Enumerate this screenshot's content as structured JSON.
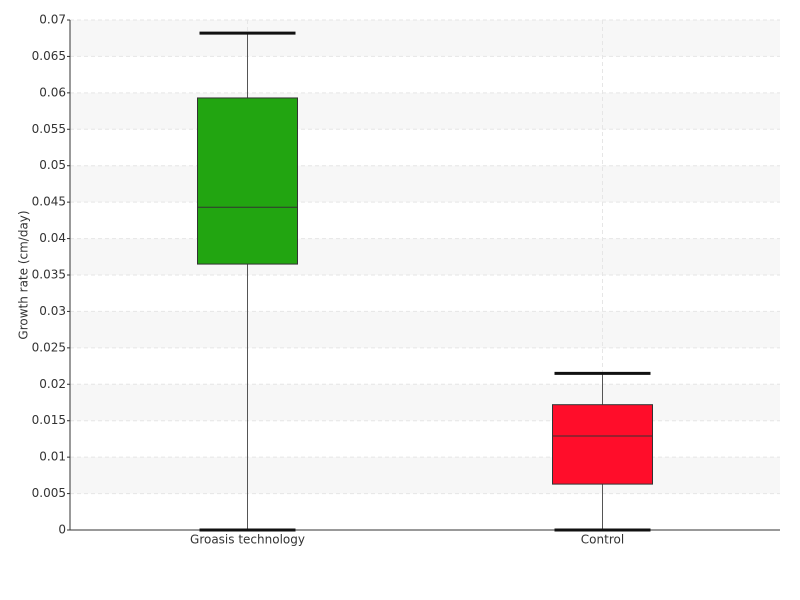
{
  "chart_data": {
    "type": "box",
    "y_label": "Growth rate (cm/day)",
    "categories": [
      "Groasis technology",
      "Control"
    ],
    "boxes": [
      {
        "min": 0,
        "q1": 0.0365,
        "median": 0.0443,
        "q3": 0.0593,
        "max": 0.0682,
        "color": "#22a511"
      },
      {
        "min": 0,
        "q1": 0.0063,
        "median": 0.0129,
        "q3": 0.0172,
        "max": 0.0215,
        "color": "#ff0d2a"
      }
    ],
    "ylim": [
      0,
      0.07
    ],
    "yticks": [
      0,
      0.005,
      0.01,
      0.015,
      0.02,
      0.025,
      0.03,
      0.035,
      0.04,
      0.045,
      0.05,
      0.055,
      0.06,
      0.065,
      0.07
    ],
    "grid": true
  }
}
